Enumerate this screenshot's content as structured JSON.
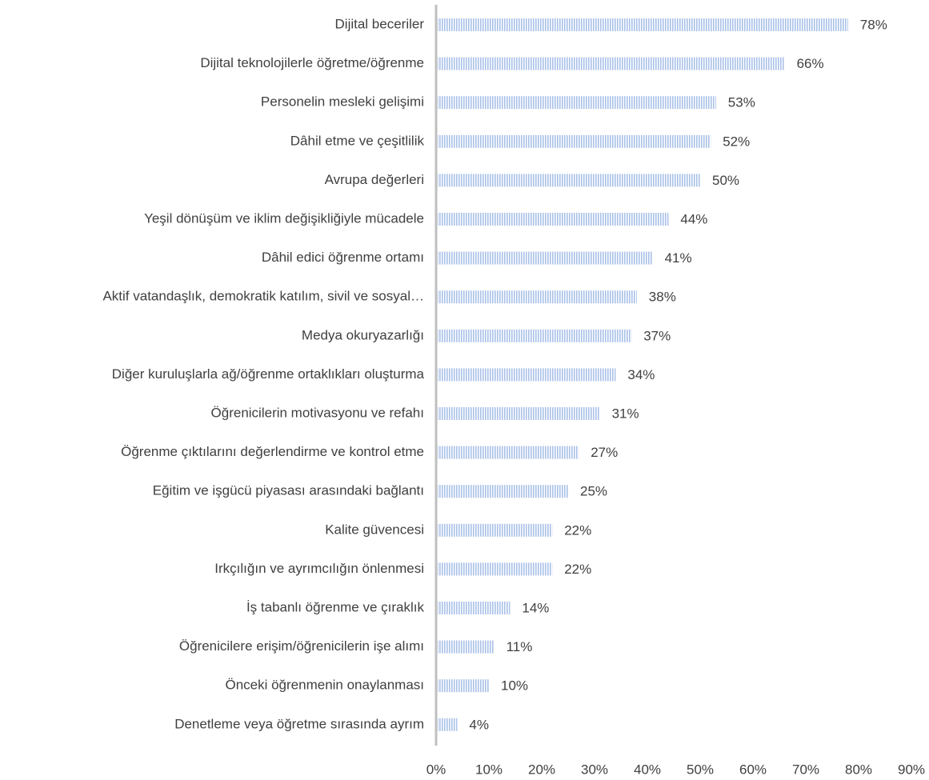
{
  "chart_data": {
    "type": "barh",
    "categories": [
      "Dijital beceriler",
      "Dijital teknolojilerle öğretme/öğrenme",
      "Personelin mesleki gelişimi",
      "Dâhil etme ve çeşitlilik",
      "Avrupa değerleri",
      "Yeşil dönüşüm ve iklim değişikliğiyle mücadele",
      "Dâhil edici öğrenme ortamı",
      "Aktif vatandaşlık, demokratik katılım, sivil ve sosyal…",
      "Medya okuryazarlığı",
      "Diğer kuruluşlarla ağ/öğrenme ortaklıkları oluşturma",
      "Öğrenicilerin motivasyonu ve refahı",
      "Öğrenme çıktılarını değerlendirme ve kontrol etme",
      "Eğitim ve işgücü piyasası arasındaki bağlantı",
      "Kalite güvencesi",
      "Irkçılığın ve ayrımcılığın önlenmesi",
      "İş tabanlı öğrenme ve çıraklık",
      "Öğrenicilere erişim/öğrenicilerin işe alımı",
      "Önceki öğrenmenin onaylanması",
      "Denetleme veya öğretme sırasında ayrım"
    ],
    "values": [
      78,
      66,
      53,
      52,
      50,
      44,
      41,
      38,
      37,
      34,
      31,
      27,
      25,
      22,
      22,
      14,
      11,
      10,
      4
    ],
    "value_labels": [
      "78%",
      "66%",
      "53%",
      "52%",
      "50%",
      "44%",
      "41%",
      "38%",
      "37%",
      "34%",
      "31%",
      "27%",
      "25%",
      "22%",
      "22%",
      "14%",
      "11%",
      "10%",
      "4%"
    ],
    "color": "#a9c1e8",
    "xlim": [
      0,
      90
    ],
    "xticks": [
      {
        "value": 0,
        "label": "0%"
      },
      {
        "value": 10,
        "label": "10%"
      },
      {
        "value": 20,
        "label": "20%"
      },
      {
        "value": 30,
        "label": "30%"
      },
      {
        "value": 40,
        "label": "40%"
      },
      {
        "value": 50,
        "label": "50%"
      },
      {
        "value": 60,
        "label": "60%"
      },
      {
        "value": 70,
        "label": "70%"
      },
      {
        "value": 80,
        "label": "80%"
      },
      {
        "value": 90,
        "label": "90%"
      }
    ],
    "grid": false
  }
}
